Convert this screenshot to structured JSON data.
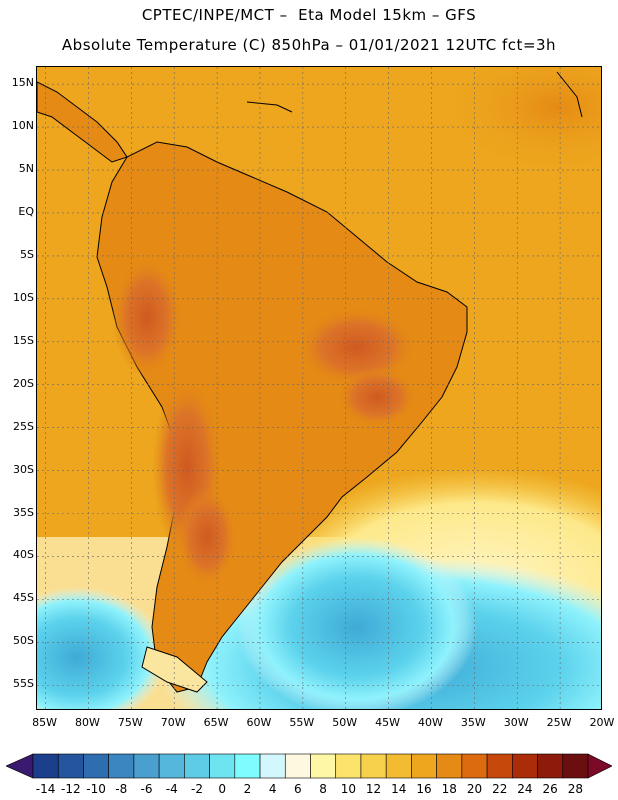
{
  "header": {
    "line1": "CPTEC/INPE/MCT –  Eta Model 15km – GFS",
    "line2": "Absolute Temperature (C) 850hPa – 01/01/2021 12UTC fct=3h"
  },
  "map": {
    "variable": "Absolute Temperature (C) 850hPa",
    "lat_range": [
      -58,
      17
    ],
    "lon_range": [
      -86,
      -20
    ],
    "lat_labels": [
      "15N",
      "10N",
      "5N",
      "EQ",
      "5S",
      "10S",
      "15S",
      "20S",
      "25S",
      "30S",
      "35S",
      "40S",
      "45S",
      "50S",
      "55S"
    ],
    "lat_values": [
      15,
      10,
      5,
      0,
      -5,
      -10,
      -15,
      -20,
      -25,
      -30,
      -35,
      -40,
      -45,
      -50,
      -55
    ],
    "lon_labels": [
      "85W",
      "80W",
      "75W",
      "70W",
      "65W",
      "60W",
      "55W",
      "50W",
      "45W",
      "40W",
      "35W",
      "30W",
      "25W",
      "20W"
    ],
    "lon_values": [
      -85,
      -80,
      -75,
      -70,
      -65,
      -60,
      -55,
      -50,
      -45,
      -40,
      -35,
      -30,
      -25,
      -20
    ],
    "grid": true,
    "colors": {
      "ocean_warm": "#f0b020",
      "land_hot": "#d8742a",
      "land_very_hot": "#c8561e",
      "cool_ocean": "#5cd2ec",
      "cold_ocean": "#3eaad6",
      "mild": "#fff6c8"
    }
  },
  "colorbar": {
    "labels": [
      "-14",
      "-12",
      "-10",
      "-8",
      "-6",
      "-4",
      "-2",
      "0",
      "2",
      "4",
      "6",
      "8",
      "10",
      "12",
      "14",
      "16",
      "18",
      "20",
      "22",
      "24",
      "26",
      "28"
    ],
    "colors": [
      "#1c3f8c",
      "#24559e",
      "#2e6db0",
      "#3b85c0",
      "#49a0cf",
      "#56b7dc",
      "#5fcce6",
      "#6ee4f0",
      "#7ffcfd",
      "#d2f7fc",
      "#fdf8df",
      "#fdf7a6",
      "#fce46c",
      "#f8d14c",
      "#f2bb32",
      "#eda61e",
      "#e58a14",
      "#dc6a0e",
      "#c7480b",
      "#ab2c08",
      "#8d1a0a",
      "#6b0e10"
    ],
    "left_tip": "#3a1a6e",
    "right_tip": "#7a0a28"
  }
}
